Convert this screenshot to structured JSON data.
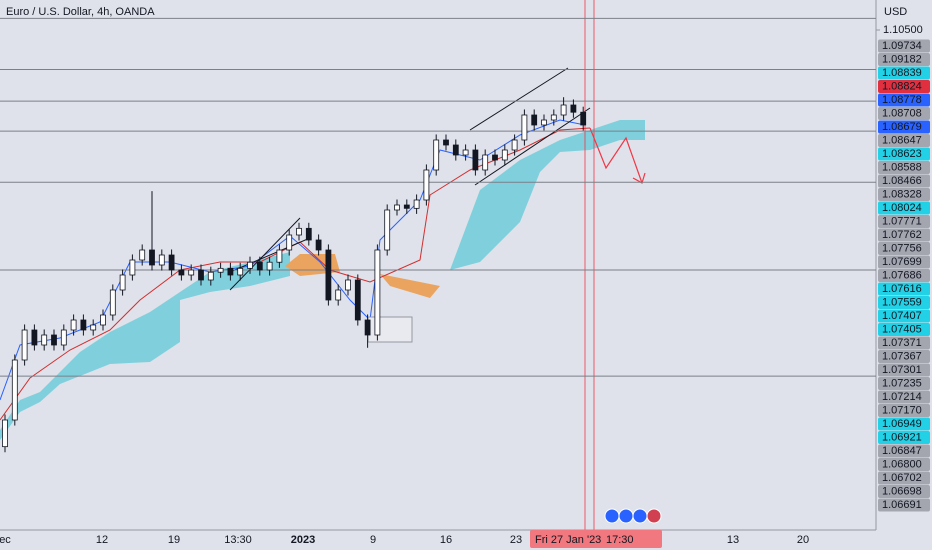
{
  "chart_data": {
    "type": "candlestick",
    "title": "Euro / U.S. Dollar, 4h, OANDA",
    "currency": "USD",
    "candles": [
      [
        1.03,
        1.0358,
        1.029,
        1.0348
      ],
      [
        1.0348,
        1.0466,
        1.0338,
        1.0456
      ],
      [
        1.0456,
        1.052,
        1.0446,
        1.051
      ],
      [
        1.051,
        1.052,
        1.0473,
        1.0483
      ],
      [
        1.0483,
        1.0511,
        1.0473,
        1.0501
      ],
      [
        1.0501,
        1.0511,
        1.0473,
        1.0483
      ],
      [
        1.0483,
        1.052,
        1.0473,
        1.051
      ],
      [
        1.051,
        1.0538,
        1.05,
        1.0528
      ],
      [
        1.0528,
        1.0538,
        1.05,
        1.051
      ],
      [
        1.051,
        1.0529,
        1.05,
        1.0519
      ],
      [
        1.0519,
        1.0547,
        1.0509,
        1.0537
      ],
      [
        1.0537,
        1.0592,
        1.0527,
        1.0582
      ],
      [
        1.0582,
        1.0619,
        1.0572,
        1.0609
      ],
      [
        1.0609,
        1.0646,
        1.0599,
        1.0636
      ],
      [
        1.0636,
        1.0664,
        1.0626,
        1.0654
      ],
      [
        1.0654,
        1.076,
        1.0617,
        1.0627
      ],
      [
        1.0627,
        1.0655,
        1.0617,
        1.0645
      ],
      [
        1.0645,
        1.0655,
        1.0608,
        1.0618
      ],
      [
        1.0618,
        1.0628,
        1.0599,
        1.0609
      ],
      [
        1.0609,
        1.0628,
        1.0599,
        1.0618
      ],
      [
        1.0618,
        1.0628,
        1.059,
        1.06
      ],
      [
        1.06,
        1.0624,
        1.059,
        1.0614
      ],
      [
        1.0614,
        1.0631,
        1.0604,
        1.0621
      ],
      [
        1.0621,
        1.0631,
        1.0599,
        1.0609
      ],
      [
        1.0609,
        1.0631,
        1.0599,
        1.0621
      ],
      [
        1.0621,
        1.0642,
        1.0611,
        1.0632
      ],
      [
        1.0632,
        1.0642,
        1.0608,
        1.0618
      ],
      [
        1.0618,
        1.0642,
        1.0608,
        1.0632
      ],
      [
        1.0632,
        1.0664,
        1.0622,
        1.0654
      ],
      [
        1.0654,
        1.0691,
        1.0644,
        1.0681
      ],
      [
        1.0681,
        1.0703,
        1.0671,
        1.0693
      ],
      [
        1.0693,
        1.0703,
        1.0662,
        1.0672
      ],
      [
        1.0672,
        1.0682,
        1.0644,
        1.0654
      ],
      [
        1.0654,
        1.0664,
        1.0554,
        1.0564
      ],
      [
        1.0564,
        1.0592,
        1.0554,
        1.0582
      ],
      [
        1.0582,
        1.061,
        1.0572,
        1.06
      ],
      [
        1.06,
        1.061,
        1.0518,
        1.0528
      ],
      [
        1.0528,
        1.0538,
        1.0478,
        1.0501
      ],
      [
        1.0501,
        1.0664,
        1.0491,
        1.0654
      ],
      [
        1.0654,
        1.0736,
        1.0644,
        1.0726
      ],
      [
        1.0726,
        1.0745,
        1.0716,
        1.0735
      ],
      [
        1.0735,
        1.0745,
        1.0719,
        1.0729
      ],
      [
        1.0729,
        1.0754,
        1.0719,
        1.0744
      ],
      [
        1.0744,
        1.0808,
        1.0734,
        1.0798
      ],
      [
        1.0798,
        1.0862,
        1.0788,
        1.0852
      ],
      [
        1.0852,
        1.0862,
        1.0833,
        1.0843
      ],
      [
        1.0843,
        1.0853,
        1.0815,
        1.0825
      ],
      [
        1.0825,
        1.0844,
        1.0815,
        1.0834
      ],
      [
        1.0834,
        1.0844,
        1.0788,
        1.0798
      ],
      [
        1.0798,
        1.0835,
        1.0788,
        1.0825
      ],
      [
        1.0825,
        1.0835,
        1.0806,
        1.0816
      ],
      [
        1.0816,
        1.0844,
        1.0806,
        1.0834
      ],
      [
        1.0834,
        1.0862,
        1.0824,
        1.0852
      ],
      [
        1.0852,
        1.0907,
        1.0842,
        1.0897
      ],
      [
        1.0897,
        1.0907,
        1.0869,
        1.0879
      ],
      [
        1.0879,
        1.0898,
        1.0869,
        1.0888
      ],
      [
        1.0888,
        1.0907,
        1.0878,
        1.0897
      ],
      [
        1.0897,
        1.0929,
        1.0887,
        1.0915
      ],
      [
        1.0915,
        1.0925,
        1.0892,
        1.0902
      ],
      [
        1.0902,
        1.0912,
        1.0869,
        1.0879
      ]
    ],
    "candle_color": "#131722",
    "levels": [
      1.1071,
      1.0979,
      1.0922,
      1.0868,
      1.0776,
      1.0618,
      1.0427
    ],
    "ylim": [
      1.015,
      1.1104
    ],
    "yticks": [
      {
        "value": 1.105,
        "label": "1.10500"
      }
    ],
    "x_labels": [
      "ec",
      "12",
      "19",
      "13:30",
      "2023",
      "9",
      "16",
      "23",
      "13",
      "20"
    ],
    "crosshair_label": [
      "Fri 27 Jan '23",
      "17:30"
    ],
    "price_tags": [
      {
        "label": "1.09734",
        "color": "#a3a6af"
      },
      {
        "label": "1.09182",
        "color": "#a3a6af"
      },
      {
        "label": "1.08839",
        "color": "#22d1e6"
      },
      {
        "label": "1.08824",
        "color": "#e03040"
      },
      {
        "label": "1.08778",
        "color": "#2962ff"
      },
      {
        "label": "1.08708",
        "color": "#a3a6af"
      },
      {
        "label": "1.08679",
        "color": "#2962ff"
      },
      {
        "label": "1.08647",
        "color": "#a3a6af"
      },
      {
        "label": "1.08623",
        "color": "#22d1e6"
      },
      {
        "label": "1.08588",
        "color": "#a3a6af"
      },
      {
        "label": "1.08466",
        "color": "#a3a6af"
      },
      {
        "label": "1.08328",
        "color": "#a3a6af"
      },
      {
        "label": "1.08024",
        "color": "#22d1e6"
      },
      {
        "label": "1.07771",
        "color": "#a3a6af"
      },
      {
        "label": "1.07762",
        "color": "#a3a6af"
      },
      {
        "label": "1.07756",
        "color": "#a3a6af"
      },
      {
        "label": "1.07699",
        "color": "#a3a6af"
      },
      {
        "label": "1.07686",
        "color": "#a3a6af"
      },
      {
        "label": "1.07616",
        "color": "#22d1e6"
      },
      {
        "label": "1.07559",
        "color": "#22d1e6"
      },
      {
        "label": "1.07407",
        "color": "#22d1e6"
      },
      {
        "label": "1.07405",
        "color": "#22d1e6"
      },
      {
        "label": "1.07371",
        "color": "#a3a6af"
      },
      {
        "label": "1.07367",
        "color": "#a3a6af"
      },
      {
        "label": "1.07301",
        "color": "#a3a6af"
      },
      {
        "label": "1.07235",
        "color": "#a3a6af"
      },
      {
        "label": "1.07214",
        "color": "#a3a6af"
      },
      {
        "label": "1.07170",
        "color": "#a3a6af"
      },
      {
        "label": "1.06949",
        "color": "#22d1e6"
      },
      {
        "label": "1.06921",
        "color": "#22d1e6"
      },
      {
        "label": "1.06847",
        "color": "#a3a6af"
      },
      {
        "label": "1.06800",
        "color": "#a3a6af"
      },
      {
        "label": "1.06702",
        "color": "#a3a6af"
      },
      {
        "label": "1.06698",
        "color": "#a3a6af"
      },
      {
        "label": "1.06691",
        "color": "#a3a6af"
      }
    ]
  }
}
